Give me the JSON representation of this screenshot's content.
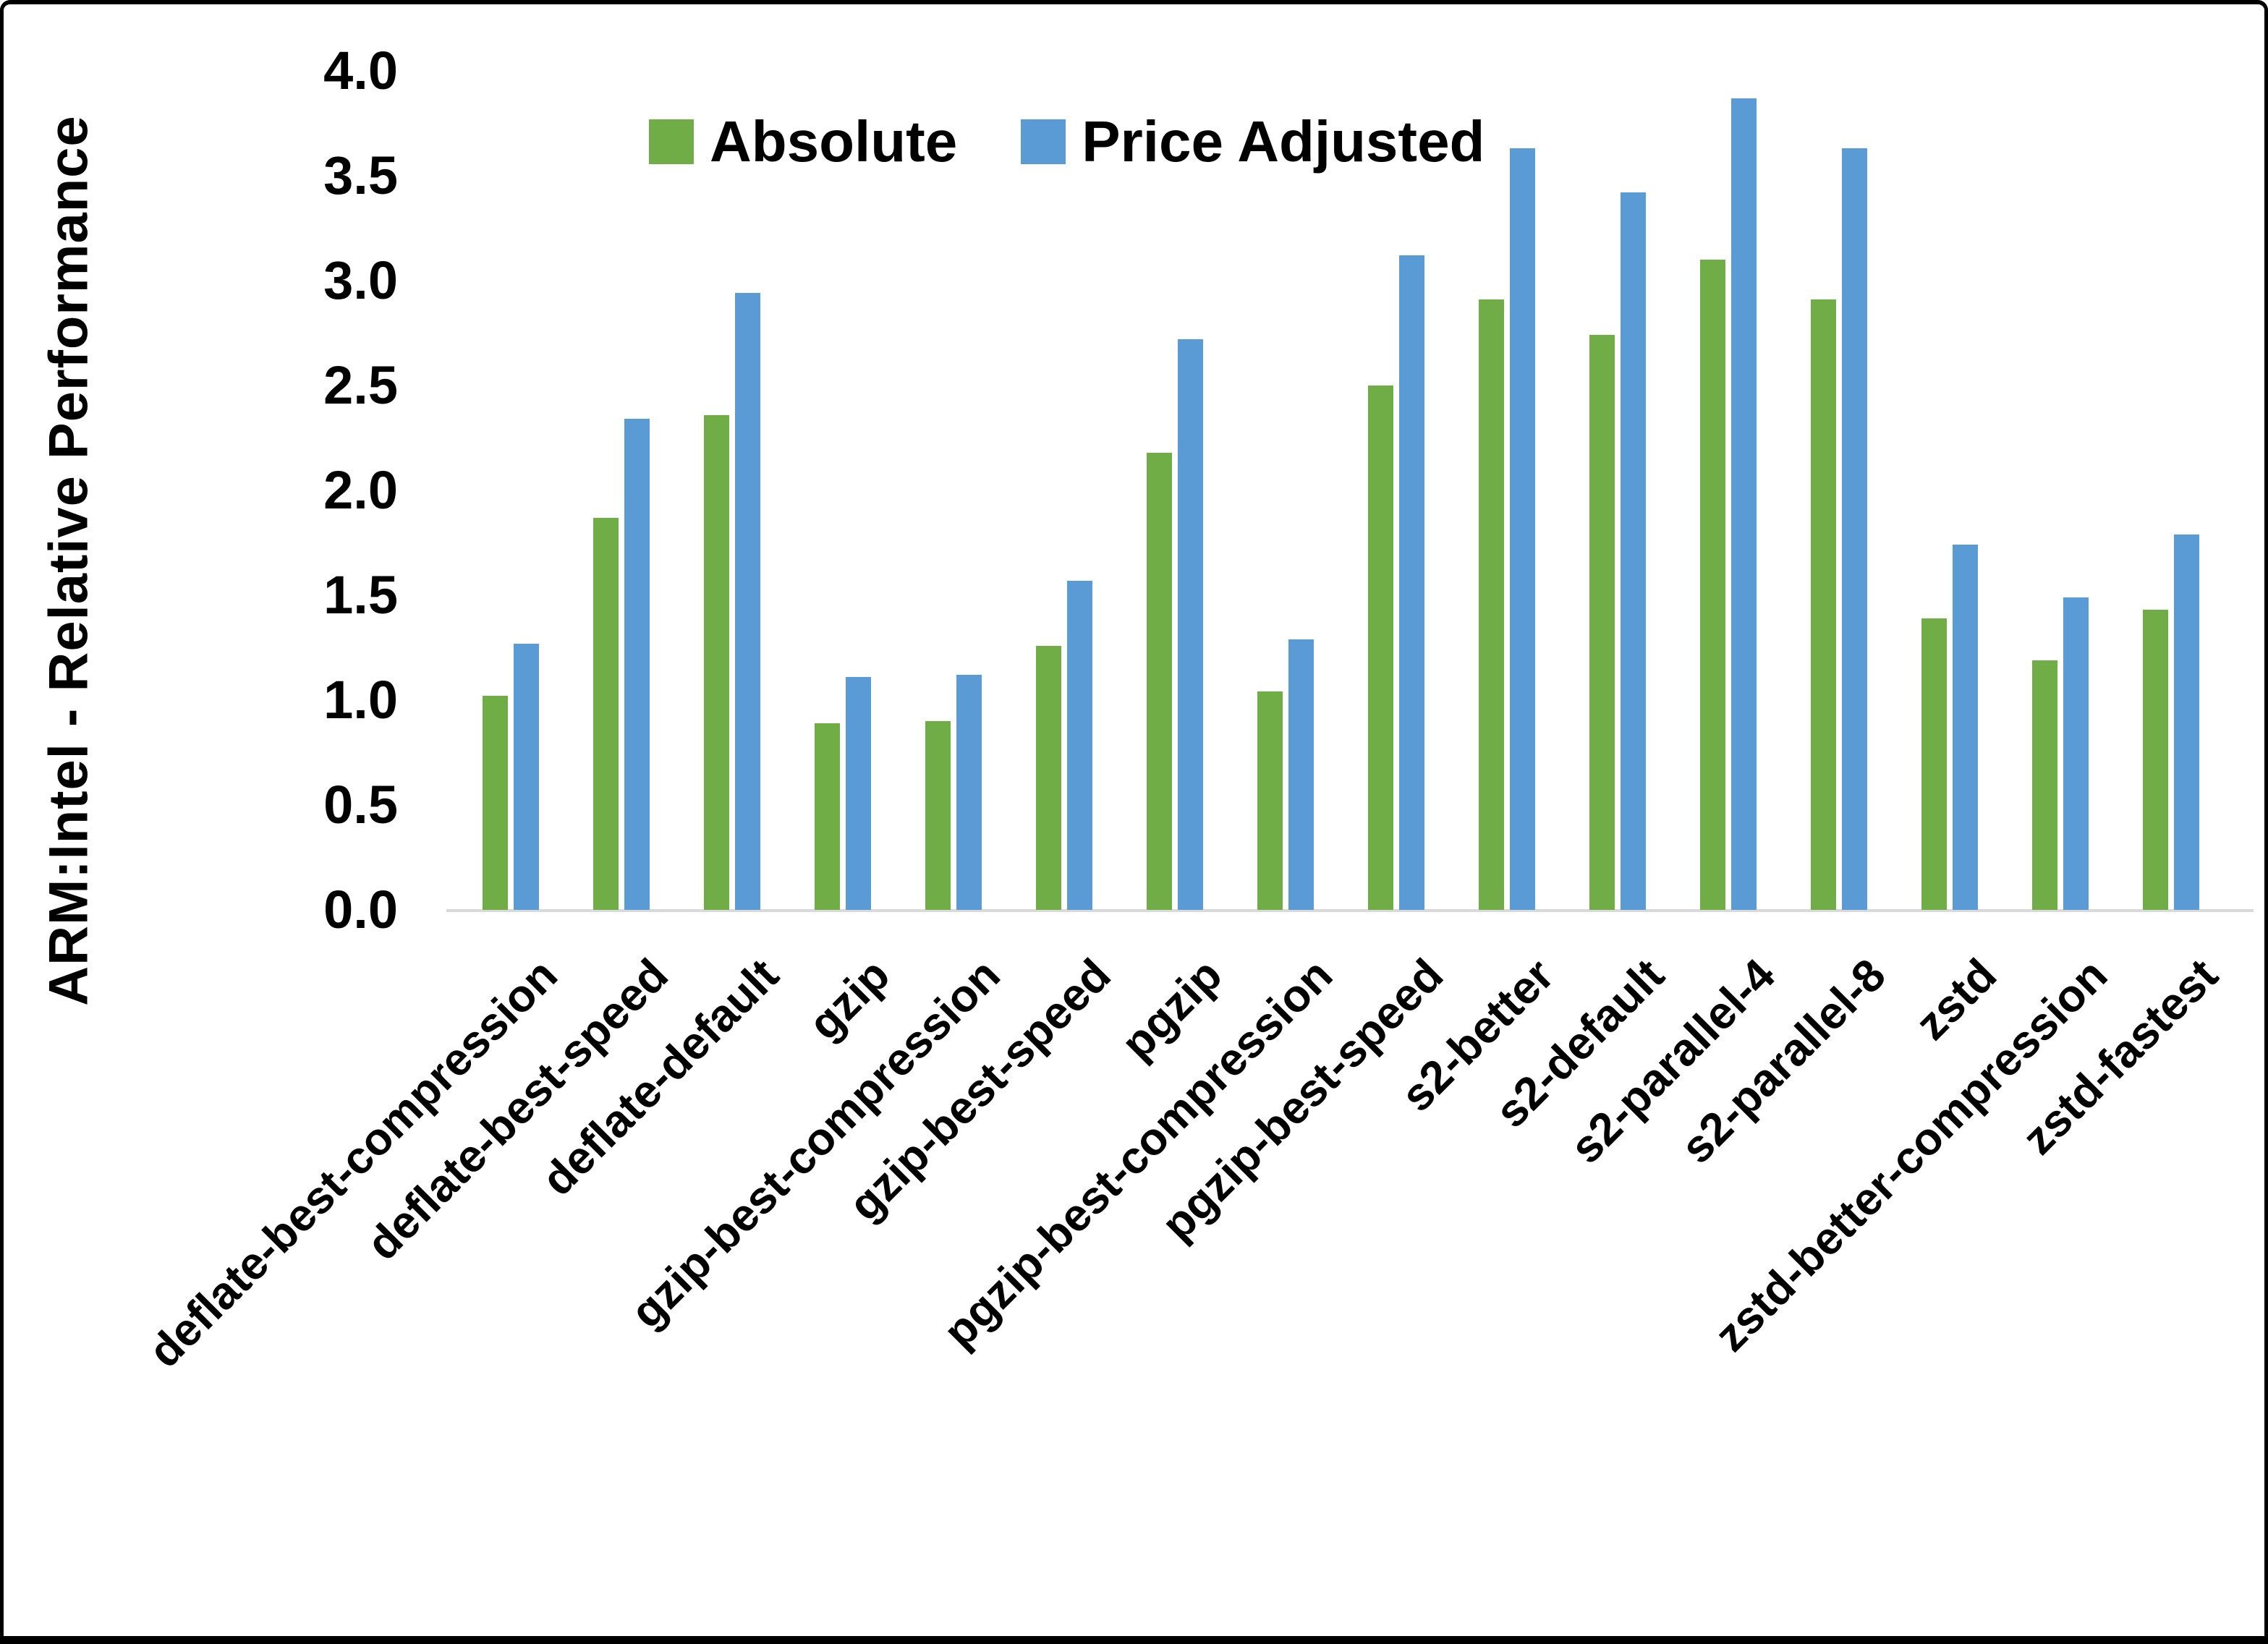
{
  "chart_data": {
    "type": "bar",
    "title": "",
    "xlabel": "",
    "ylabel": "ARM:Intel - Relative Performance",
    "ylim": [
      0.0,
      4.0
    ],
    "y_tick_labels": [
      "0.0",
      "0.5",
      "1.0",
      "1.5",
      "2.0",
      "2.5",
      "3.0",
      "3.5",
      "4.0"
    ],
    "grid": false,
    "legend_position": "top-center",
    "categories": [
      "deflate-best-compression",
      "deflate-best-speed",
      "deflate-default",
      "gzip",
      "gzip-best-compression",
      "gzip-best-speed",
      "pgzip",
      "pgzip-best-compression",
      "pgzip-best-speed",
      "s2-better",
      "s2-default",
      "s2-parallel-4",
      "s2-parallel-8",
      "zstd",
      "zstd-better-compression",
      "zstd-fastest"
    ],
    "series": [
      {
        "name": "Absolute",
        "color": "#70AD47",
        "values": [
          1.02,
          1.87,
          2.36,
          0.89,
          0.9,
          1.26,
          2.18,
          1.04,
          2.5,
          2.91,
          2.74,
          3.1,
          2.91,
          1.39,
          1.19,
          1.43
        ]
      },
      {
        "name": "Price Adjusted",
        "color": "#5B9BD5",
        "values": [
          1.27,
          2.34,
          2.94,
          1.11,
          1.12,
          1.57,
          2.72,
          1.29,
          3.12,
          3.63,
          3.42,
          3.87,
          3.63,
          1.74,
          1.49,
          1.79
        ]
      }
    ]
  },
  "colors": {
    "background": "#FFFFFF",
    "frame": "#000000",
    "axis_line": "#D9D9D9",
    "text": "#000000",
    "absolute_green": "#70AD47",
    "price_adjusted_blue": "#5B9BD5"
  }
}
